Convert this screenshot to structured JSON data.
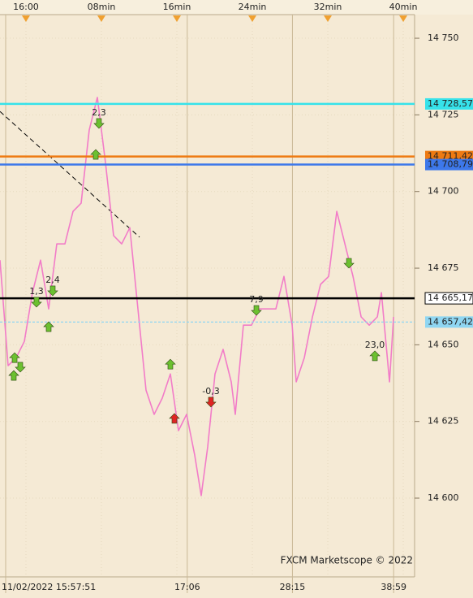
{
  "chart_data": {
    "type": "line",
    "watermark": "FXCM Marketscope © 2022",
    "xlim": [
      -2.75,
      41.2
    ],
    "ylim": [
      14574.3,
      14757.7
    ],
    "xticks": [
      {
        "value": 0,
        "label": "16:00"
      },
      {
        "value": 8,
        "label": "08min"
      },
      {
        "value": 16,
        "label": "16min"
      },
      {
        "value": 24,
        "label": "24min"
      },
      {
        "value": 32,
        "label": "32min"
      },
      {
        "value": 40,
        "label": "40min"
      }
    ],
    "x2ticks": [
      {
        "value": -2.15,
        "label": "11/02/2022 15:57:51"
      },
      {
        "value": 17.1,
        "label": "17:06"
      },
      {
        "value": 28.25,
        "label": "28:15"
      },
      {
        "value": 38.98,
        "label": "38:59"
      }
    ],
    "yticks": [
      {
        "value": 14750,
        "label": "14 750"
      },
      {
        "value": 14725,
        "label": "14 725"
      },
      {
        "value": 14700,
        "label": "14 700"
      },
      {
        "value": 14675,
        "label": "14 675"
      },
      {
        "value": 14650,
        "label": "14 650"
      },
      {
        "value": 14625,
        "label": "14 625"
      },
      {
        "value": 14600,
        "label": "14 600"
      }
    ],
    "grid": true,
    "series": [
      {
        "color": "#f27cc8",
        "x": [
          -2.75,
          -1.89,
          -1.03,
          -0.17,
          0.69,
          1.55,
          2.41,
          3.27,
          4.13,
          4.99,
          5.85,
          6.71,
          7.57,
          8.43,
          9.29,
          10.15,
          11.01,
          11.87,
          12.73,
          13.59,
          14.45,
          15.31,
          16.17,
          17.03,
          17.89,
          18.58,
          19.27,
          20.04,
          20.9,
          21.76,
          22.19,
          23.05,
          23.91,
          24.77,
          25.63,
          26.49,
          27.35,
          28.22,
          28.65,
          29.51,
          30.37,
          31.23,
          32.09,
          32.95,
          33.81,
          34.67,
          35.53,
          36.39,
          37.25,
          37.68,
          38.54,
          38.97
        ],
        "values": [
          14677.6,
          14643.2,
          14645.8,
          14651.1,
          14667.0,
          14677.6,
          14661.7,
          14682.9,
          14682.9,
          14693.5,
          14696.2,
          14720.1,
          14730.7,
          14709.4,
          14685.6,
          14682.9,
          14688.2,
          14661.7,
          14635.2,
          14627.3,
          14632.6,
          14640.5,
          14622.0,
          14627.3,
          14614.0,
          14600.8,
          14616.7,
          14640.5,
          14648.5,
          14637.9,
          14627.3,
          14656.4,
          14656.4,
          14661.7,
          14661.7,
          14661.7,
          14672.3,
          14656.4,
          14637.9,
          14645.8,
          14659.1,
          14669.7,
          14672.3,
          14693.5,
          14682.9,
          14672.3,
          14659.1,
          14656.4,
          14659.1,
          14667.0,
          14637.9,
          14659.1
        ]
      }
    ],
    "trendline": {
      "color": "#000000",
      "x": [
        -2.75,
        12.04
      ],
      "values": [
        14726.1,
        14685.1
      ]
    },
    "levels": [
      {
        "value": 14728.57,
        "label": "14 728,57",
        "color": "#36e2ea",
        "text_color": "#1a1a1a",
        "style": "solid"
      },
      {
        "value": 14711.42,
        "label": "14 711,42",
        "color": "#ee7a12",
        "text_color": "#ffffff",
        "style": "solid"
      },
      {
        "value": 14708.79,
        "label": "14 708,79",
        "color": "#3d78ea",
        "text_color": "#1a1a1a",
        "style": "solid"
      },
      {
        "value": 14665.17,
        "label": "14 665,17",
        "color": "#000000",
        "text_color": "#000000",
        "style": "solid"
      },
      {
        "value": 14657.42,
        "label": "14 657,42",
        "color": "#8fd6f2",
        "text_color": "#1a1a1a",
        "style": "dashed"
      }
    ],
    "signals": [
      {
        "x": -1.2,
        "value": 14645.8,
        "direction": "up",
        "color": "#6cc030"
      },
      {
        "x": -1.29,
        "value": 14640.0,
        "direction": "up",
        "color": "#6cc030"
      },
      {
        "x": -0.6,
        "value": 14642.7,
        "direction": "down",
        "color": "#6cc030"
      },
      {
        "x": 1.12,
        "value": 14663.9,
        "direction": "down",
        "color": "#6cc030",
        "label": "1,3"
      },
      {
        "x": 2.84,
        "value": 14667.6,
        "direction": "down",
        "color": "#6cc030",
        "label": "2,4"
      },
      {
        "x": 2.41,
        "value": 14655.9,
        "direction": "up",
        "color": "#6cc030"
      },
      {
        "x": 7.74,
        "value": 14722.2,
        "direction": "down",
        "color": "#6cc030",
        "label": "2,3"
      },
      {
        "x": 7.4,
        "value": 14712.1,
        "direction": "up",
        "color": "#6cc030"
      },
      {
        "x": 15.31,
        "value": 14643.7,
        "direction": "up",
        "color": "#6cc030"
      },
      {
        "x": 15.74,
        "value": 14626.0,
        "direction": "up",
        "color": "#e02424"
      },
      {
        "x": 19.61,
        "value": 14631.3,
        "direction": "down",
        "color": "#e02424",
        "label": "-0,3"
      },
      {
        "x": 24.43,
        "value": 14661.2,
        "direction": "down",
        "color": "#6cc030",
        "label": "7,9"
      },
      {
        "x": 34.24,
        "value": 14676.6,
        "direction": "down",
        "color": "#6cc030"
      },
      {
        "x": 36.99,
        "value": 14646.4,
        "direction": "up",
        "color": "#6cc030",
        "label": "23,0"
      }
    ]
  }
}
